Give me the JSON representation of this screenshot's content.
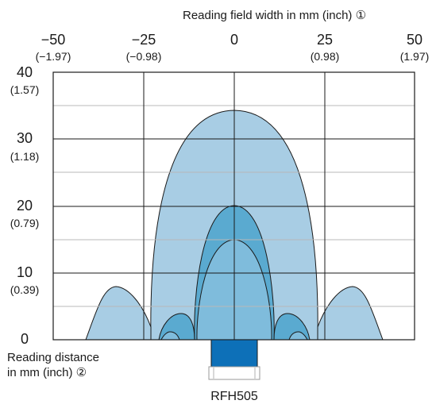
{
  "header": {
    "x_axis_title": "Reading field width in mm (inch) ①"
  },
  "x_ticks": [
    {
      "mm": "−50",
      "inch": "(−1.97)",
      "value": -50
    },
    {
      "mm": "−25",
      "inch": "(−0.98)",
      "value": -25
    },
    {
      "mm": "0",
      "inch": "",
      "value": 0
    },
    {
      "mm": "25",
      "inch": "(0.98)",
      "value": 25
    },
    {
      "mm": "50",
      "inch": "(1.97)",
      "value": 50
    }
  ],
  "y_ticks": [
    {
      "mm": "40",
      "inch": "(1.57)",
      "value": 40
    },
    {
      "mm": "30",
      "inch": "(1.18)",
      "value": 30
    },
    {
      "mm": "20",
      "inch": "(0.79)",
      "value": 20
    },
    {
      "mm": "10",
      "inch": "(0.39)",
      "value": 10
    },
    {
      "mm": "0",
      "inch": "",
      "value": 0
    }
  ],
  "y_axis_title": {
    "line1": "Reading distance",
    "line2": "in mm (inch) ②"
  },
  "sensor": {
    "label": "RFH505"
  },
  "colors": {
    "outer_field": "#a8cde4",
    "middle_field": "#5aaad0",
    "inner_field": "#7fbcdc",
    "sensor_body": "#0d70b8",
    "grid_major": "#1a1a1a",
    "grid_minor": "#b8b8b8"
  }
}
